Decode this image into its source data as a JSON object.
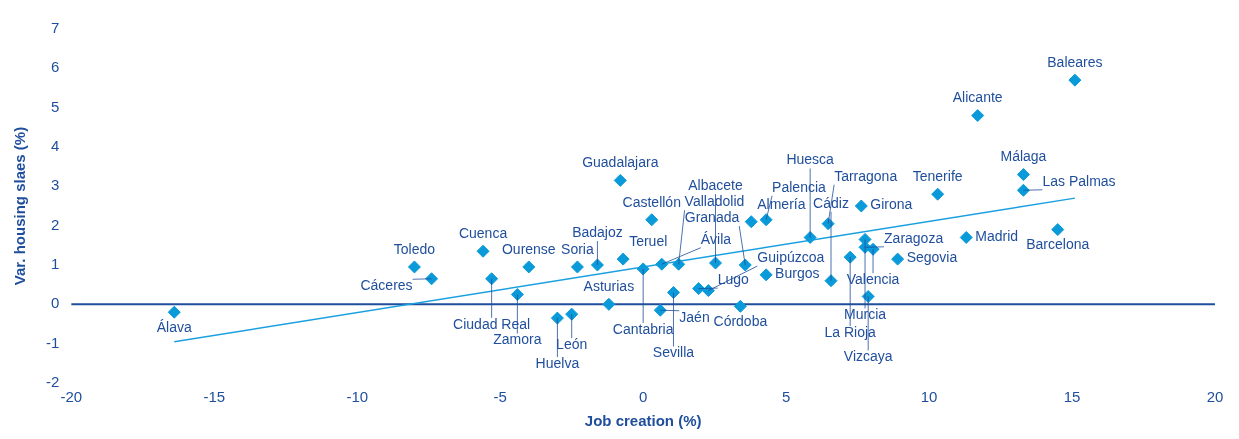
{
  "chart_data": {
    "type": "scatter",
    "xlabel": "Job creation (%)",
    "ylabel": "Var. housing slaes (%)",
    "xlim": [
      -20,
      20
    ],
    "xticks": [
      -20,
      -15,
      -10,
      -5,
      0,
      5,
      10,
      15,
      20
    ],
    "ylim": [
      -2,
      7
    ],
    "yticks": [
      -2,
      -1,
      0,
      1,
      2,
      3,
      4,
      5,
      6,
      7
    ],
    "grid": false,
    "legend": false,
    "marker": "diamond",
    "ref_lines": [
      {
        "axis": "y",
        "value": 0,
        "color": "#1f4e9c"
      }
    ],
    "series": [
      {
        "type": "scatter",
        "color": "#0a9ad9",
        "x": [
          -16.4,
          -8.0,
          -7.4,
          -5.6,
          -5.3,
          -4.4,
          -4.0,
          -3.0,
          -2.5,
          -2.3,
          -1.6,
          -1.2,
          -0.7,
          0.0,
          -0.8,
          0.3,
          0.65,
          1.24,
          0.6,
          1.06,
          1.94,
          2.28,
          3.4,
          4.3,
          3.57,
          2.53,
          3.78,
          4.3,
          6.47,
          5.84,
          7.63,
          7.76,
          7.76,
          8.04,
          7.24,
          6.57,
          8.9,
          7.87,
          10.3,
          11.3,
          11.7,
          15.1,
          13.3,
          13.3,
          14.5
        ],
        "values": [
          -0.2,
          0.95,
          0.65,
          1.35,
          0.65,
          0.25,
          0.95,
          -0.35,
          -0.25,
          0.95,
          1.0,
          0.0,
          1.15,
          0.9,
          3.15,
          2.15,
          1.02,
          1.02,
          -0.15,
          0.3,
          0.4,
          0.35,
          -0.05,
          0.75,
          1.0,
          1.05,
          2.1,
          2.15,
          2.05,
          1.7,
          2.5,
          1.65,
          1.45,
          1.4,
          1.2,
          0.6,
          1.15,
          0.2,
          2.8,
          1.7,
          4.8,
          5.7,
          3.3,
          2.9,
          1.9
        ]
      },
      {
        "type": "line",
        "color": "#1aa0e0",
        "marker": "none",
        "x": [
          -16.4,
          15.1
        ],
        "values": [
          -0.95,
          2.7
        ]
      }
    ],
    "annotations": [
      {
        "text": "Álava",
        "x": -16.4,
        "y": -0.2
      },
      {
        "text": "Toledo",
        "x": -8.0,
        "y": 0.95
      },
      {
        "text": "Cáceres",
        "x": -7.4,
        "y": 0.65
      },
      {
        "text": "Cuenca",
        "x": -5.6,
        "y": 1.35
      },
      {
        "text": "Ciudad Real",
        "x": -5.3,
        "y": 0.65
      },
      {
        "text": "Zamora",
        "x": -4.4,
        "y": 0.25
      },
      {
        "text": "Ourense",
        "x": -4.0,
        "y": 0.95
      },
      {
        "text": "Huelva",
        "x": -3.0,
        "y": -0.35
      },
      {
        "text": "León",
        "x": -2.5,
        "y": -0.25
      },
      {
        "text": "Soria",
        "x": -2.3,
        "y": 0.95
      },
      {
        "text": "Badajoz",
        "x": -1.6,
        "y": 1.0
      },
      {
        "text": "Asturias",
        "x": -1.2,
        "y": 0.0
      },
      {
        "text": "Teruel",
        "x": -0.7,
        "y": 1.15
      },
      {
        "text": "Cantabria",
        "x": 0.0,
        "y": 0.9
      },
      {
        "text": "Guadalajara",
        "x": -0.8,
        "y": 3.15
      },
      {
        "text": "Castellón",
        "x": 0.3,
        "y": 2.15
      },
      {
        "text": "Ávila",
        "x": 0.65,
        "y": 1.02
      },
      {
        "text": "Valladolid",
        "x": 1.24,
        "y": 1.02
      },
      {
        "text": "Jaén",
        "x": 0.6,
        "y": -0.15
      },
      {
        "text": "Sevilla",
        "x": 1.06,
        "y": 0.3
      },
      {
        "text": "Lugo",
        "x": 1.94,
        "y": 0.4
      },
      {
        "text": "Guipúzcoa",
        "x": 2.28,
        "y": 0.35
      },
      {
        "text": "Córdoba",
        "x": 3.4,
        "y": -0.05
      },
      {
        "text": "Burgos",
        "x": 4.3,
        "y": 0.75
      },
      {
        "text": "Granada",
        "x": 3.57,
        "y": 1.0
      },
      {
        "text": "Albacete",
        "x": 2.53,
        "y": 1.05
      },
      {
        "text": "Almería",
        "x": 3.78,
        "y": 2.1
      },
      {
        "text": "Palencia",
        "x": 4.3,
        "y": 2.15
      },
      {
        "text": "Tarragona",
        "x": 6.47,
        "y": 2.05
      },
      {
        "text": "Huesca",
        "x": 5.84,
        "y": 1.7
      },
      {
        "text": "Girona",
        "x": 7.63,
        "y": 2.5
      },
      {
        "text": "Murcia",
        "x": 7.76,
        "y": 1.65
      },
      {
        "text": "Zaragoza",
        "x": 7.76,
        "y": 1.45
      },
      {
        "text": "Valencia",
        "x": 8.04,
        "y": 1.4
      },
      {
        "text": "La Rioja",
        "x": 7.24,
        "y": 1.2
      },
      {
        "text": "Cádiz",
        "x": 6.57,
        "y": 0.6
      },
      {
        "text": "Segovia",
        "x": 8.9,
        "y": 1.15
      },
      {
        "text": "Vizcaya",
        "x": 7.87,
        "y": 0.2
      },
      {
        "text": "Tenerife",
        "x": 10.3,
        "y": 2.8
      },
      {
        "text": "Madrid",
        "x": 11.3,
        "y": 1.7
      },
      {
        "text": "Alicante",
        "x": 11.7,
        "y": 4.8
      },
      {
        "text": "Baleares",
        "x": 15.1,
        "y": 5.7
      },
      {
        "text": "Málaga",
        "x": 13.3,
        "y": 3.3
      },
      {
        "text": "Las Palmas",
        "x": 13.3,
        "y": 2.9
      },
      {
        "text": "Barcelona",
        "x": 14.5,
        "y": 1.9
      }
    ]
  }
}
